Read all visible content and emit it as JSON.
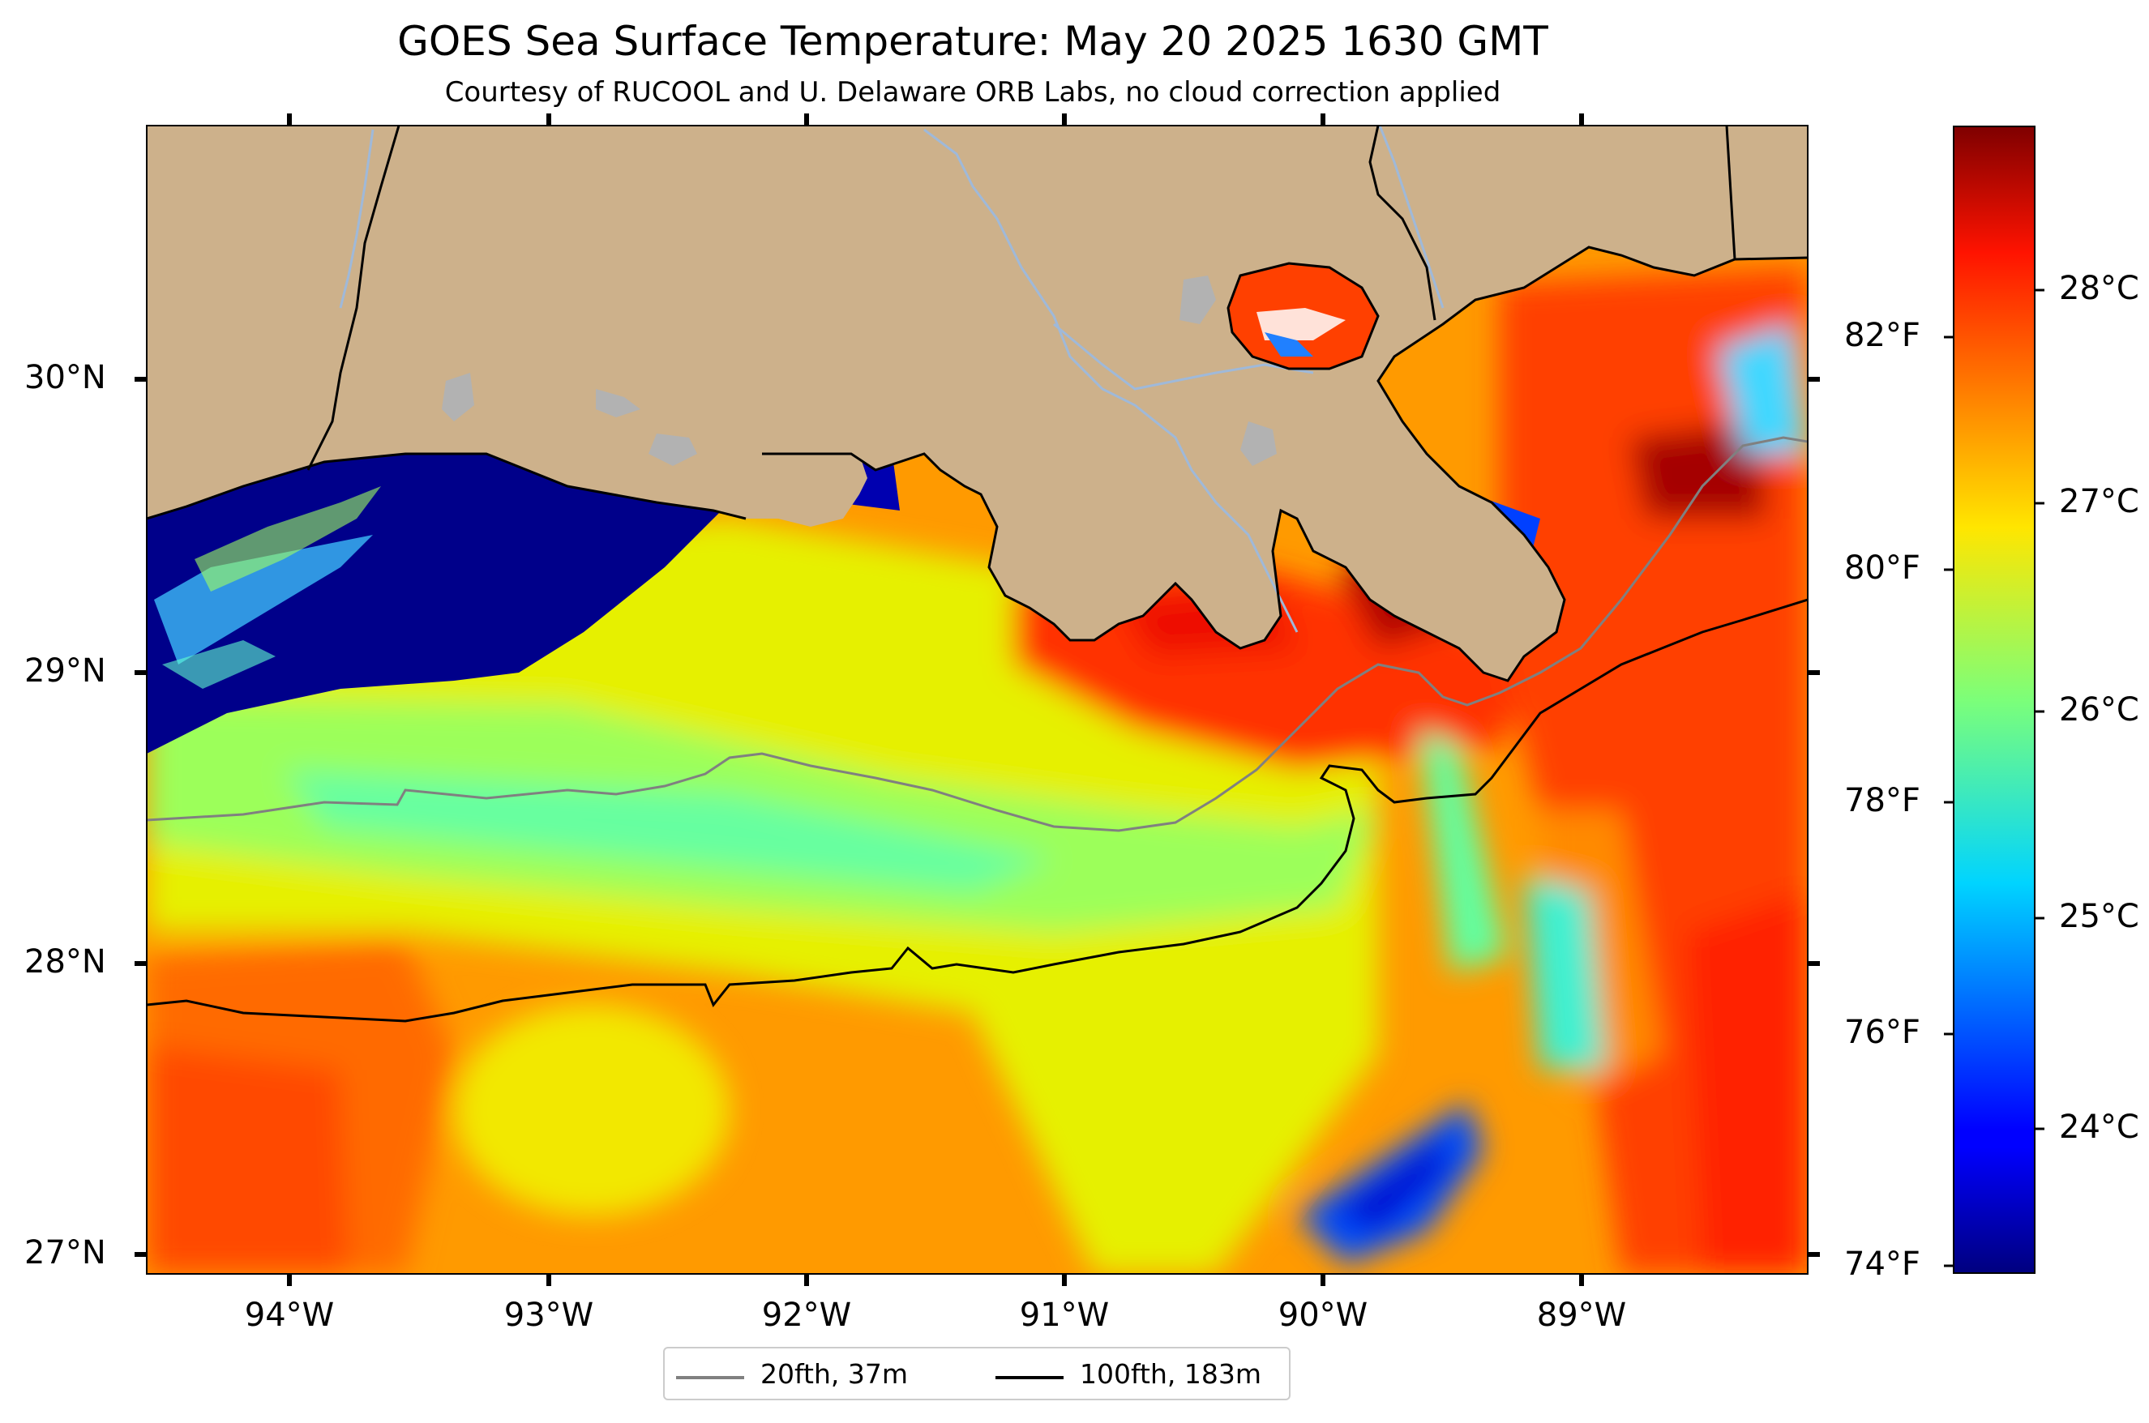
{
  "title": "GOES Sea Surface Temperature: May 20 2025 1630 GMT",
  "subtitle": "Courtesy of RUCOOL and U. Delaware ORB Labs, no cloud correction applied",
  "axes": {
    "lat_ticks": [
      "30°N",
      "29°N",
      "28°N",
      "27°N"
    ],
    "lon_ticks": [
      "94°W",
      "93°W",
      "92°W",
      "91°W",
      "90°W",
      "89°W"
    ]
  },
  "colorbar": {
    "fahrenheit_ticks": [
      "82°F",
      "80°F",
      "78°F",
      "76°F",
      "74°F"
    ],
    "celsius_ticks": [
      "28°C",
      "27°C",
      "26°C",
      "25°C",
      "24°C"
    ],
    "colormap": "jet"
  },
  "legend": {
    "items": [
      {
        "label": "20fth, 37m",
        "color": "#808080"
      },
      {
        "label": "100fth, 183m",
        "color": "#000000"
      }
    ]
  },
  "colors": {
    "land": "#cdb18b",
    "lakes": "#b2b2b2",
    "rivers": "#9fb9d9",
    "cold": "#00007f",
    "warm": "#7f0000"
  }
}
